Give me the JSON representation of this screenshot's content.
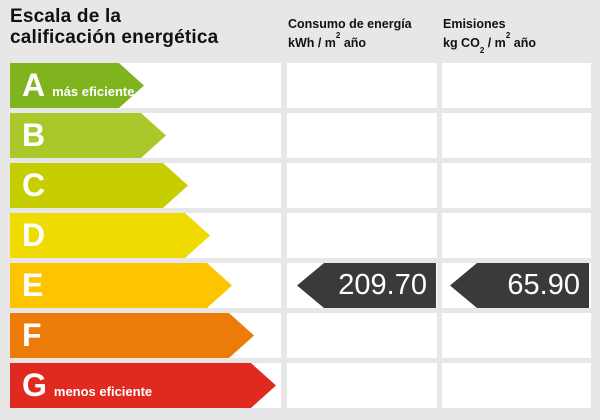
{
  "title": {
    "line1": "Escala de la",
    "line2": "calificación energética"
  },
  "columns": {
    "consumption": {
      "title": "Consumo de energía",
      "unit_base": "kWh / m",
      "unit_sup": "2",
      "unit_tail": " año"
    },
    "emissions": {
      "title": "Emisiones",
      "unit_pre": "kg CO",
      "unit_sub": "2",
      "unit_mid": " / m",
      "unit_sup": "2",
      "unit_tail": " año"
    }
  },
  "chart_data": {
    "type": "bar",
    "title": "Escala de la calificación energética",
    "categories": [
      "A",
      "B",
      "C",
      "D",
      "E",
      "F",
      "G"
    ],
    "series": [
      {
        "name": "scale_arrow_width_px",
        "values": [
          134,
          156,
          178,
          200,
          222,
          244,
          266
        ]
      }
    ],
    "annotations": {
      "A": "más eficiente",
      "G": "menos eficiente",
      "result_row": "E",
      "consumption_kwh_m2_year": 209.7,
      "emissions_kgco2_m2_year": 65.9
    },
    "legend_position": "none",
    "grid": false
  },
  "scale": {
    "ratings": [
      {
        "letter": "A",
        "note": "más eficiente",
        "color": "#80b41e",
        "arrow_width": 134
      },
      {
        "letter": "B",
        "note": "",
        "color": "#abc82b",
        "arrow_width": 156
      },
      {
        "letter": "C",
        "note": "",
        "color": "#c6cd00",
        "arrow_width": 178
      },
      {
        "letter": "D",
        "note": "",
        "color": "#efdb00",
        "arrow_width": 200
      },
      {
        "letter": "E",
        "note": "",
        "color": "#fdc400",
        "arrow_width": 222
      },
      {
        "letter": "F",
        "note": "",
        "color": "#ec7b0a",
        "arrow_width": 244
      },
      {
        "letter": "G",
        "note": "menos eficiente",
        "color": "#e02a1f",
        "arrow_width": 266
      }
    ]
  },
  "result": {
    "rating_letter": "E",
    "consumption_value": "209.70",
    "emissions_value": "65.90",
    "badge_color": "#3a3a3a"
  },
  "colors": {
    "background": "#e7e7e7",
    "cell": "#ffffff",
    "text": "#111111"
  }
}
